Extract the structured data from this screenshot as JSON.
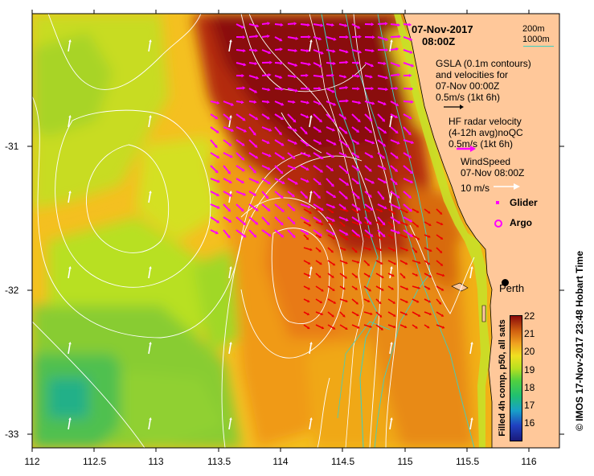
{
  "header": {
    "date": "07-Nov-2017",
    "time": "08:00Z"
  },
  "depth_legend": {
    "shallow": "200m",
    "deep": "1000m",
    "deep_color": "#3fd0c0"
  },
  "gsla": {
    "title_line1": "GSLA (0.1m contours)",
    "title_line2": "and velocities for",
    "title_line3": "07-Nov 00:00Z",
    "scale_label": "0.5m/s (1kt 6h)"
  },
  "hf_radar": {
    "title_line1": "HF radar velocity",
    "title_line2": "(4-12h avg)noQC",
    "scale_label": "0.5m/s (1kt 6h)",
    "color": "#ff00ff"
  },
  "wind": {
    "title_line1": "WindSpeed",
    "title_line2": "07-Nov 08:00Z",
    "scale_label": "10 m/s"
  },
  "markers": {
    "glider_label": "Glider",
    "argo_label": "Argo",
    "color": "#ff00ff"
  },
  "place": {
    "name": "Perth"
  },
  "axes": {
    "x_ticks": [
      "112",
      "112.5",
      "113",
      "113.5",
      "114",
      "114.5",
      "115",
      "115.5",
      "116"
    ],
    "y_ticks": [
      "-31",
      "-32",
      "-33"
    ]
  },
  "colorbar": {
    "ticks": [
      "22",
      "21",
      "20",
      "19",
      "18",
      "17",
      "16"
    ],
    "title": "Filled 4h comp, p50, all sats",
    "min": 15.5,
    "max": 22
  },
  "credit": "© IMOS 17-Nov-2017 23:48 Hobart Time"
}
